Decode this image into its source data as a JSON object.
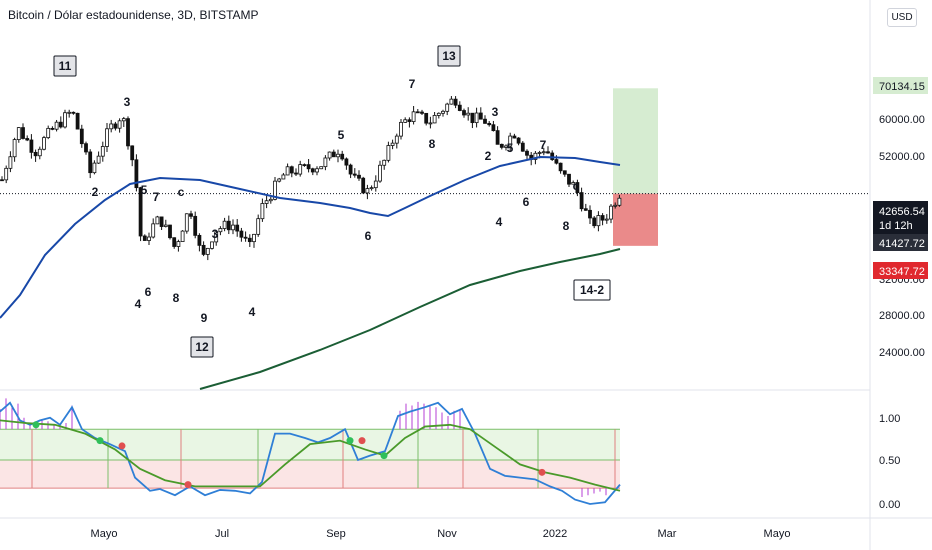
{
  "header": {
    "title": "Bitcoin / Dólar estadounidense, 3D, BITSTAMP",
    "currency_button": "USD"
  },
  "price_axis": {
    "ticks": [
      "60000.00",
      "52000.00",
      "32000.00",
      "28000.00",
      "24000.00"
    ],
    "badges": {
      "target": "70134.15",
      "last_price": "42656.54",
      "countdown": "1d 12h",
      "ma_value": "41427.72",
      "stop": "33347.72"
    }
  },
  "osc_axis": {
    "ticks": [
      "1.00",
      "0.50",
      "0.00"
    ]
  },
  "time_axis": {
    "ticks": [
      "Mayo",
      "Jul",
      "Sep",
      "Nov",
      "2022",
      "Mar",
      "Mayo"
    ]
  },
  "annotations": {
    "boxes": [
      "11",
      "13",
      "12",
      "14-2"
    ],
    "wave_labels": [
      "3",
      "2",
      "5",
      "7",
      "c",
      "4",
      "6",
      "8",
      "3",
      "9",
      "4",
      "5",
      "6",
      "7",
      "8",
      "3",
      "2",
      "5",
      "4",
      "7",
      "6",
      "c",
      "8"
    ]
  },
  "chart_data": {
    "type": "candlestick",
    "main": {
      "scale": "log",
      "series": [
        {
          "name": "",
          "color": "#1848a8",
          "x": [
            "2021-03",
            "2021-05",
            "2021-07",
            "2021-09",
            "2021-11",
            "2022-01",
            "2022-02"
          ],
          "y": [
            34000,
            45000,
            45000,
            40000,
            50000,
            53000,
            51000
          ]
        },
        {
          "name": "",
          "color": "#1b5e35",
          "x": [
            "2021-06",
            "2021-08",
            "2021-10",
            "2021-12",
            "2022-02"
          ],
          "y": [
            23500,
            28000,
            32500,
            37500,
            41427.72
          ]
        }
      ],
      "price_range_candles": [
        29000,
        69000
      ],
      "position": {
        "entry": 42656.54,
        "target": 70134.15,
        "stop": 33347.72
      }
    },
    "oscillator": {
      "ylim": [
        0,
        1.2
      ],
      "levels": [
        0.5,
        0.8,
        0.2
      ],
      "series": [
        {
          "name": "",
          "color": "#2f7fd6"
        },
        {
          "name": "",
          "color": "#4a9a2a"
        }
      ]
    }
  }
}
